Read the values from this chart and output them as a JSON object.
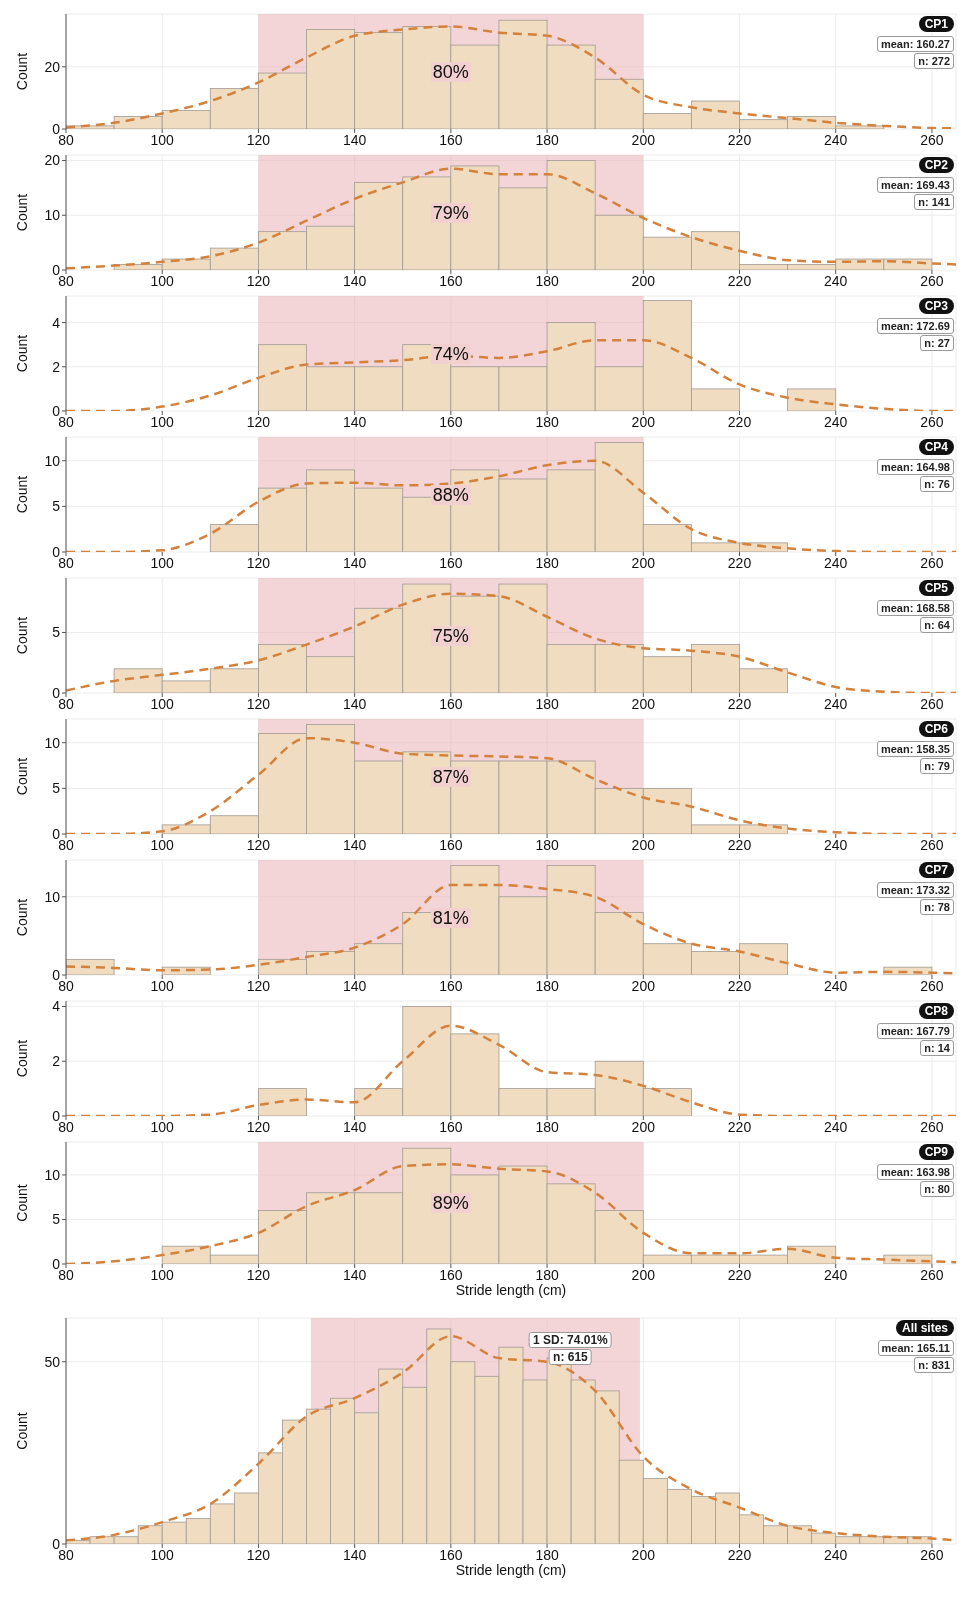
{
  "chart_data": [
    {
      "type": "histogram",
      "ylabel": "Count",
      "bins": [
        80,
        90,
        100,
        110,
        120,
        130,
        140,
        150,
        160,
        170,
        180,
        190,
        200,
        210,
        220,
        230,
        240,
        250,
        260
      ],
      "values": [
        1,
        4,
        6,
        13,
        18,
        32,
        31,
        33,
        27,
        35,
        27,
        16,
        5,
        9,
        3,
        4,
        1,
        0
      ],
      "color": "#f0dcc0",
      "xlim": [
        80,
        265
      ],
      "xticks": [
        80,
        100,
        120,
        140,
        160,
        180,
        200,
        220,
        240,
        260
      ],
      "ylim": [
        0,
        37
      ],
      "yticks": [
        0,
        20
      ],
      "grid": true,
      "bands": [
        {
          "axis": "x",
          "from": 120,
          "to": 200,
          "label": "80%",
          "color": "#e8a9b0"
        }
      ],
      "annotations": [
        "CP1",
        "mean: 160.27",
        "n: 272"
      ],
      "series": [
        {
          "type": "line",
          "color": "#d4813c",
          "line_style": "dashed",
          "marker": "none",
          "x": [
            80,
            90,
            100,
            110,
            120,
            130,
            140,
            150,
            160,
            170,
            180,
            190,
            200,
            210,
            220,
            230,
            240,
            250,
            260,
            265
          ],
          "values": [
            0.5,
            2,
            5,
            9,
            15,
            23,
            30,
            32,
            33,
            31,
            30,
            23,
            11,
            7,
            5,
            3.5,
            2,
            1,
            0.3,
            0.2
          ]
        }
      ]
    },
    {
      "type": "histogram",
      "ylabel": "Count",
      "bins": [
        80,
        90,
        100,
        110,
        120,
        130,
        140,
        150,
        160,
        170,
        180,
        190,
        200,
        210,
        220,
        230,
        240,
        250,
        260
      ],
      "values": [
        0,
        1,
        2,
        4,
        7,
        8,
        16,
        17,
        19,
        15,
        20,
        10,
        6,
        7,
        1,
        1,
        2,
        2
      ],
      "color": "#f0dcc0",
      "xlim": [
        80,
        265
      ],
      "xticks": [
        80,
        100,
        120,
        140,
        160,
        180,
        200,
        220,
        240,
        260
      ],
      "ylim": [
        0,
        21
      ],
      "yticks": [
        0,
        10,
        20
      ],
      "grid": true,
      "bands": [
        {
          "axis": "x",
          "from": 120,
          "to": 200,
          "label": "79%",
          "color": "#e8a9b0"
        }
      ],
      "annotations": [
        "CP2",
        "mean: 169.43",
        "n: 141"
      ],
      "series": [
        {
          "type": "line",
          "color": "#d4813c",
          "line_style": "dashed",
          "marker": "none",
          "x": [
            80,
            90,
            100,
            110,
            120,
            130,
            140,
            150,
            160,
            170,
            180,
            190,
            200,
            210,
            220,
            230,
            240,
            250,
            260,
            265
          ],
          "values": [
            0.3,
            0.8,
            1.5,
            2.5,
            5,
            9,
            13,
            16,
            18.5,
            17.5,
            17.5,
            14,
            9.5,
            6,
            3.5,
            1.8,
            1.5,
            1.6,
            1.2,
            1
          ]
        }
      ]
    },
    {
      "type": "histogram",
      "ylabel": "Count",
      "bins": [
        80,
        90,
        100,
        110,
        120,
        130,
        140,
        150,
        160,
        170,
        180,
        190,
        200,
        210,
        220,
        230,
        240,
        250,
        260
      ],
      "values": [
        0,
        0,
        0,
        0,
        3,
        2,
        2,
        3,
        2,
        2,
        4,
        2,
        5,
        1,
        0,
        1,
        0,
        0
      ],
      "color": "#f0dcc0",
      "xlim": [
        80,
        265
      ],
      "xticks": [
        80,
        100,
        120,
        140,
        160,
        180,
        200,
        220,
        240,
        260
      ],
      "ylim": [
        0,
        5.2
      ],
      "yticks": [
        0,
        2,
        4
      ],
      "grid": true,
      "bands": [
        {
          "axis": "x",
          "from": 120,
          "to": 200,
          "label": "74%",
          "color": "#e8a9b0"
        }
      ],
      "annotations": [
        "CP3",
        "mean: 172.69",
        "n: 27"
      ],
      "series": [
        {
          "type": "line",
          "color": "#d4813c",
          "line_style": "dashed",
          "marker": "none",
          "x": [
            80,
            90,
            100,
            110,
            120,
            130,
            140,
            150,
            160,
            170,
            180,
            190,
            200,
            210,
            220,
            230,
            240,
            250,
            260,
            265
          ],
          "values": [
            0,
            0,
            0.2,
            0.7,
            1.5,
            2.1,
            2.2,
            2.3,
            2.5,
            2.4,
            2.7,
            3.2,
            3.2,
            2.4,
            1.2,
            0.6,
            0.3,
            0.1,
            0,
            0
          ]
        }
      ]
    },
    {
      "type": "histogram",
      "ylabel": "Count",
      "bins": [
        80,
        90,
        100,
        110,
        120,
        130,
        140,
        150,
        160,
        170,
        180,
        190,
        200,
        210,
        220,
        230,
        240,
        250,
        260
      ],
      "values": [
        0,
        0,
        0,
        3,
        7,
        9,
        7,
        6,
        9,
        8,
        9,
        12,
        3,
        1,
        1,
        0,
        0,
        0
      ],
      "color": "#f0dcc0",
      "xlim": [
        80,
        265
      ],
      "xticks": [
        80,
        100,
        120,
        140,
        160,
        180,
        200,
        220,
        240,
        260
      ],
      "ylim": [
        0,
        12.6
      ],
      "yticks": [
        0,
        5,
        10
      ],
      "grid": true,
      "bands": [
        {
          "axis": "x",
          "from": 120,
          "to": 200,
          "label": "88%",
          "color": "#e8a9b0"
        }
      ],
      "annotations": [
        "CP4",
        "mean: 164.98",
        "n: 76"
      ],
      "series": [
        {
          "type": "line",
          "color": "#d4813c",
          "line_style": "dashed",
          "marker": "none",
          "x": [
            80,
            90,
            100,
            110,
            120,
            130,
            140,
            150,
            160,
            170,
            180,
            190,
            200,
            210,
            220,
            230,
            240,
            250,
            260,
            265
          ],
          "values": [
            0,
            0,
            0.2,
            2,
            5.5,
            7.5,
            7.6,
            7.3,
            7.5,
            8.3,
            9.5,
            10,
            6.5,
            2.5,
            1,
            0.4,
            0.1,
            0,
            0,
            0
          ]
        }
      ]
    },
    {
      "type": "histogram",
      "ylabel": "Count",
      "bins": [
        80,
        90,
        100,
        110,
        120,
        130,
        140,
        150,
        160,
        170,
        180,
        190,
        200,
        210,
        220,
        230,
        240,
        250,
        260
      ],
      "values": [
        0,
        2,
        1,
        2,
        4,
        3,
        7,
        9,
        8,
        9,
        4,
        4,
        3,
        4,
        2,
        0,
        0,
        0
      ],
      "color": "#f0dcc0",
      "xlim": [
        80,
        265
      ],
      "xticks": [
        80,
        100,
        120,
        140,
        160,
        180,
        200,
        220,
        240,
        260
      ],
      "ylim": [
        0,
        9.5
      ],
      "yticks": [
        0,
        5
      ],
      "grid": true,
      "bands": [
        {
          "axis": "x",
          "from": 120,
          "to": 200,
          "label": "75%",
          "color": "#e8a9b0"
        }
      ],
      "annotations": [
        "CP5",
        "mean: 168.58",
        "n: 64"
      ],
      "series": [
        {
          "type": "line",
          "color": "#d4813c",
          "line_style": "dashed",
          "marker": "none",
          "x": [
            80,
            90,
            100,
            110,
            120,
            130,
            140,
            150,
            160,
            170,
            180,
            190,
            200,
            210,
            220,
            230,
            240,
            250,
            260,
            265
          ],
          "values": [
            0.2,
            1,
            1.5,
            2,
            2.7,
            4,
            5.5,
            7.3,
            8.2,
            8,
            6.3,
            4.5,
            3.7,
            3.5,
            3,
            1.7,
            0.5,
            0.1,
            0,
            0
          ]
        }
      ]
    },
    {
      "type": "histogram",
      "ylabel": "Count",
      "bins": [
        80,
        90,
        100,
        110,
        120,
        130,
        140,
        150,
        160,
        170,
        180,
        190,
        200,
        210,
        220,
        230,
        240,
        250,
        260
      ],
      "values": [
        0,
        0,
        1,
        2,
        11,
        12,
        8,
        9,
        8,
        8,
        8,
        5,
        5,
        1,
        1,
        0,
        0,
        0
      ],
      "color": "#f0dcc0",
      "xlim": [
        80,
        265
      ],
      "xticks": [
        80,
        100,
        120,
        140,
        160,
        180,
        200,
        220,
        240,
        260
      ],
      "ylim": [
        0,
        12.6
      ],
      "yticks": [
        0,
        5,
        10
      ],
      "grid": true,
      "bands": [
        {
          "axis": "x",
          "from": 120,
          "to": 200,
          "label": "87%",
          "color": "#e8a9b0"
        }
      ],
      "annotations": [
        "CP6",
        "mean: 158.35",
        "n: 79"
      ],
      "series": [
        {
          "type": "line",
          "color": "#d4813c",
          "line_style": "dashed",
          "marker": "none",
          "x": [
            80,
            90,
            100,
            110,
            120,
            130,
            140,
            150,
            160,
            170,
            180,
            190,
            200,
            210,
            220,
            230,
            240,
            250,
            260,
            265
          ],
          "values": [
            0,
            0,
            0.3,
            2.5,
            6.5,
            10.5,
            10,
            8.8,
            8.6,
            8.5,
            8.3,
            6,
            4,
            3,
            1.5,
            0.6,
            0.2,
            0,
            0,
            0
          ]
        }
      ]
    },
    {
      "type": "histogram",
      "ylabel": "Count",
      "bins": [
        80,
        90,
        100,
        110,
        120,
        130,
        140,
        150,
        160,
        170,
        180,
        190,
        200,
        210,
        220,
        230,
        240,
        250,
        260
      ],
      "values": [
        2,
        0,
        1,
        0,
        2,
        3,
        4,
        8,
        14,
        10,
        14,
        8,
        4,
        3,
        4,
        0,
        0,
        1
      ],
      "color": "#f0dcc0",
      "xlim": [
        80,
        265
      ],
      "xticks": [
        80,
        100,
        120,
        140,
        160,
        180,
        200,
        220,
        240,
        260
      ],
      "ylim": [
        0,
        14.7
      ],
      "yticks": [
        0,
        10
      ],
      "grid": true,
      "bands": [
        {
          "axis": "x",
          "from": 120,
          "to": 200,
          "label": "81%",
          "color": "#e8a9b0"
        }
      ],
      "annotations": [
        "CP7",
        "mean: 173.32",
        "n: 78"
      ],
      "series": [
        {
          "type": "line",
          "color": "#d4813c",
          "line_style": "dashed",
          "marker": "none",
          "x": [
            80,
            90,
            100,
            110,
            120,
            130,
            140,
            150,
            160,
            170,
            180,
            190,
            200,
            210,
            220,
            230,
            240,
            250,
            260,
            265
          ],
          "values": [
            1.1,
            0.9,
            0.6,
            0.7,
            1.3,
            2.3,
            3.5,
            6.5,
            11.5,
            11.5,
            11,
            10,
            6.5,
            4,
            3,
            1.5,
            0.3,
            0.4,
            0.3,
            0.2
          ]
        }
      ]
    },
    {
      "type": "histogram",
      "ylabel": "Count",
      "bins": [
        80,
        90,
        100,
        110,
        120,
        130,
        140,
        150,
        160,
        170,
        180,
        190,
        200,
        210,
        220,
        230,
        240,
        250,
        260
      ],
      "values": [
        0,
        0,
        0,
        0,
        1,
        0,
        1,
        4,
        3,
        1,
        1,
        2,
        1,
        0,
        0,
        0,
        0,
        0
      ],
      "color": "#f0dcc0",
      "xlim": [
        80,
        265
      ],
      "xticks": [
        80,
        100,
        120,
        140,
        160,
        180,
        200,
        220,
        240,
        260
      ],
      "ylim": [
        0,
        4.2
      ],
      "yticks": [
        0,
        2,
        4
      ],
      "grid": true,
      "annotations": [
        "CP8",
        "mean: 167.79",
        "n: 14"
      ],
      "series": [
        {
          "type": "line",
          "color": "#d4813c",
          "line_style": "dashed",
          "marker": "none",
          "x": [
            80,
            90,
            100,
            110,
            120,
            130,
            140,
            150,
            160,
            170,
            180,
            190,
            200,
            210,
            220,
            230,
            240,
            250,
            260,
            265
          ],
          "values": [
            0,
            0,
            0,
            0.05,
            0.4,
            0.6,
            0.5,
            2,
            3.3,
            2.6,
            1.6,
            1.5,
            1.1,
            0.5,
            0.05,
            0,
            0,
            0,
            0,
            0
          ]
        }
      ]
    },
    {
      "type": "histogram",
      "xlabel": "Stride length (cm)",
      "ylabel": "Count",
      "bins": [
        80,
        90,
        100,
        110,
        120,
        130,
        140,
        150,
        160,
        170,
        180,
        190,
        200,
        210,
        220,
        230,
        240,
        250,
        260
      ],
      "values": [
        0,
        0,
        2,
        1,
        6,
        8,
        8,
        13,
        10,
        11,
        9,
        6,
        1,
        1,
        1,
        2,
        0,
        1
      ],
      "color": "#f0dcc0",
      "xlim": [
        80,
        265
      ],
      "xticks": [
        80,
        100,
        120,
        140,
        160,
        180,
        200,
        220,
        240,
        260
      ],
      "ylim": [
        0,
        13.7
      ],
      "yticks": [
        0,
        5,
        10
      ],
      "grid": true,
      "bands": [
        {
          "axis": "x",
          "from": 120,
          "to": 200,
          "label": "89%",
          "color": "#e8a9b0"
        }
      ],
      "annotations": [
        "CP9",
        "mean: 163.98",
        "n: 80"
      ],
      "series": [
        {
          "type": "line",
          "color": "#d4813c",
          "line_style": "dashed",
          "marker": "none",
          "x": [
            80,
            90,
            100,
            110,
            120,
            130,
            140,
            150,
            160,
            170,
            180,
            190,
            200,
            210,
            220,
            230,
            240,
            250,
            260,
            265
          ],
          "values": [
            0,
            0.3,
            1,
            2,
            3.5,
            6.5,
            8.3,
            11,
            11.2,
            10.7,
            10.4,
            8,
            3.5,
            1.2,
            1.2,
            1.7,
            0.7,
            0.5,
            0.3,
            0.2
          ]
        }
      ]
    },
    {
      "type": "histogram",
      "xlabel": "Stride length (cm)",
      "ylabel": "Count",
      "bins": [
        80,
        85,
        90,
        95,
        100,
        105,
        110,
        115,
        120,
        125,
        130,
        135,
        140,
        145,
        150,
        155,
        160,
        165,
        170,
        175,
        180,
        185,
        190,
        195,
        200,
        205,
        210,
        215,
        220,
        225,
        230,
        235,
        240,
        245,
        250,
        255,
        260
      ],
      "values": [
        1,
        2,
        2,
        5,
        6,
        7,
        11,
        14,
        25,
        34,
        37,
        40,
        36,
        48,
        43,
        59,
        50,
        46,
        54,
        45,
        51,
        45,
        42,
        23,
        18,
        15,
        13,
        14,
        8,
        5,
        5,
        3,
        2,
        2,
        2,
        2
      ],
      "color": "#f0dcc0",
      "xlim": [
        80,
        265
      ],
      "xticks": [
        80,
        100,
        120,
        140,
        160,
        180,
        200,
        220,
        240,
        260
      ],
      "ylim": [
        0,
        62
      ],
      "yticks": [
        0,
        50
      ],
      "grid": true,
      "bands": [
        {
          "axis": "x",
          "from": 130.9,
          "to": 199.3,
          "label": "1 SD: 74.01%",
          "color": "#e8a9b0"
        }
      ],
      "annotations": [
        "All sites",
        "mean: 165.11",
        "n: 831",
        "n: 615"
      ],
      "series": [
        {
          "type": "line",
          "color": "#d4813c",
          "line_style": "dashed",
          "marker": "none",
          "x": [
            80,
            90,
            100,
            110,
            120,
            130,
            140,
            150,
            160,
            170,
            180,
            190,
            200,
            210,
            220,
            230,
            240,
            250,
            260,
            265
          ],
          "values": [
            1,
            2.5,
            6,
            11,
            22,
            35,
            40,
            47,
            57,
            51,
            50,
            42,
            24,
            15,
            10,
            5,
            3,
            2,
            1.5,
            1
          ]
        }
      ]
    }
  ]
}
